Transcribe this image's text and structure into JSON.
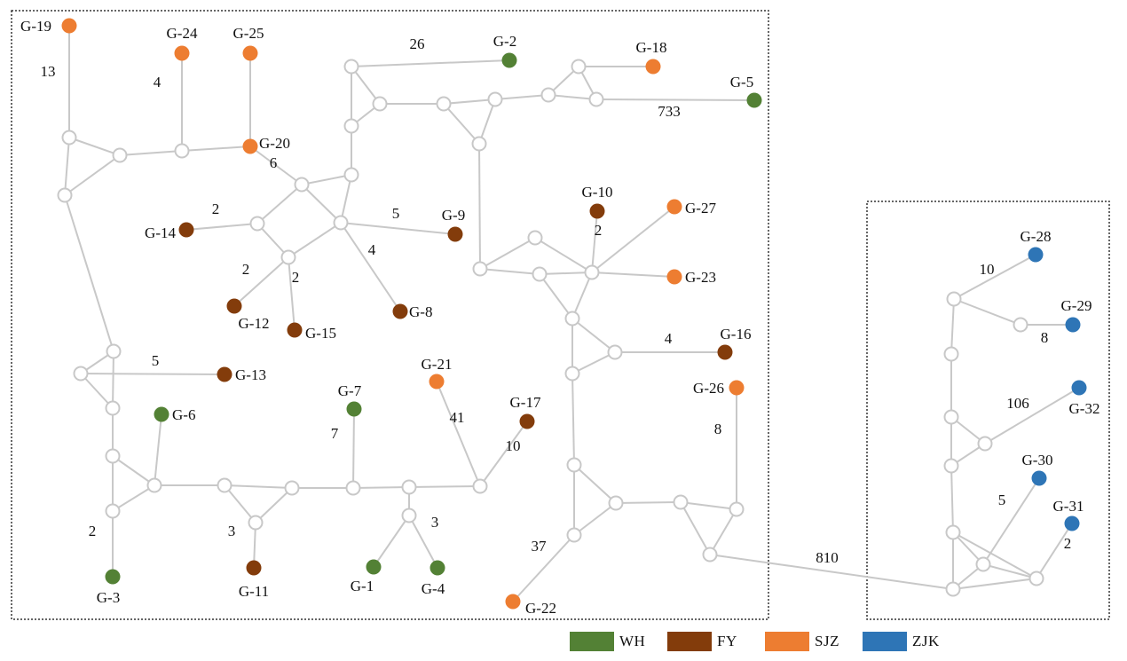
{
  "colors": {
    "WH": "#538135",
    "FY": "#833c0b",
    "SJZ": "#ed7d31",
    "ZJK": "#2e75b6",
    "edge": "#c8c8c8",
    "junction_fill": "#ffffff",
    "junction_stroke": "#c8c8c8",
    "box": "#333333"
  },
  "legend": [
    {
      "key": "WH",
      "label": "WH"
    },
    {
      "key": "FY",
      "label": "FY"
    },
    {
      "key": "SJZ",
      "label": "SJZ"
    },
    {
      "key": "ZJK",
      "label": "ZJK"
    }
  ],
  "nodes": [
    {
      "id": "G-1",
      "label": "G-1",
      "group": "WH"
    },
    {
      "id": "G-2",
      "label": "G-2",
      "group": "WH"
    },
    {
      "id": "G-3",
      "label": "G-3",
      "group": "WH"
    },
    {
      "id": "G-4",
      "label": "G-4",
      "group": "WH"
    },
    {
      "id": "G-5",
      "label": "G-5",
      "group": "WH"
    },
    {
      "id": "G-6",
      "label": "G-6",
      "group": "WH"
    },
    {
      "id": "G-7",
      "label": "G-7",
      "group": "WH"
    },
    {
      "id": "G-8",
      "label": "G-8",
      "group": "FY"
    },
    {
      "id": "G-9",
      "label": "G-9",
      "group": "FY"
    },
    {
      "id": "G-10",
      "label": "G-10",
      "group": "FY"
    },
    {
      "id": "G-11",
      "label": "G-11",
      "group": "FY"
    },
    {
      "id": "G-12",
      "label": "G-12",
      "group": "FY"
    },
    {
      "id": "G-13",
      "label": "G-13",
      "group": "FY"
    },
    {
      "id": "G-14",
      "label": "G-14",
      "group": "FY"
    },
    {
      "id": "G-15",
      "label": "G-15",
      "group": "FY"
    },
    {
      "id": "G-16",
      "label": "G-16",
      "group": "FY"
    },
    {
      "id": "G-17",
      "label": "G-17",
      "group": "FY"
    },
    {
      "id": "G-18",
      "label": "G-18",
      "group": "SJZ"
    },
    {
      "id": "G-19",
      "label": "G-19",
      "group": "SJZ"
    },
    {
      "id": "G-20",
      "label": "G-20",
      "group": "SJZ"
    },
    {
      "id": "G-21",
      "label": "G-21",
      "group": "SJZ"
    },
    {
      "id": "G-22",
      "label": "G-22",
      "group": "SJZ"
    },
    {
      "id": "G-23",
      "label": "G-23",
      "group": "SJZ"
    },
    {
      "id": "G-24",
      "label": "G-24",
      "group": "SJZ"
    },
    {
      "id": "G-25",
      "label": "G-25",
      "group": "SJZ"
    },
    {
      "id": "G-26",
      "label": "G-26",
      "group": "SJZ"
    },
    {
      "id": "G-27",
      "label": "G-27",
      "group": "SJZ"
    },
    {
      "id": "G-28",
      "label": "G-28",
      "group": "ZJK"
    },
    {
      "id": "G-29",
      "label": "G-29",
      "group": "ZJK"
    },
    {
      "id": "G-30",
      "label": "G-30",
      "group": "ZJK"
    },
    {
      "id": "G-31",
      "label": "G-31",
      "group": "ZJK"
    },
    {
      "id": "G-32",
      "label": "G-32",
      "group": "ZJK"
    }
  ],
  "edge_labels": [
    "13",
    "4",
    "6",
    "26",
    "733",
    "2",
    "5",
    "4",
    "2",
    "2",
    "5",
    "7",
    "41",
    "10",
    "3",
    "3",
    "2",
    "2",
    "4",
    "8",
    "37",
    "810",
    "10",
    "8",
    "106",
    "5",
    "2"
  ]
}
